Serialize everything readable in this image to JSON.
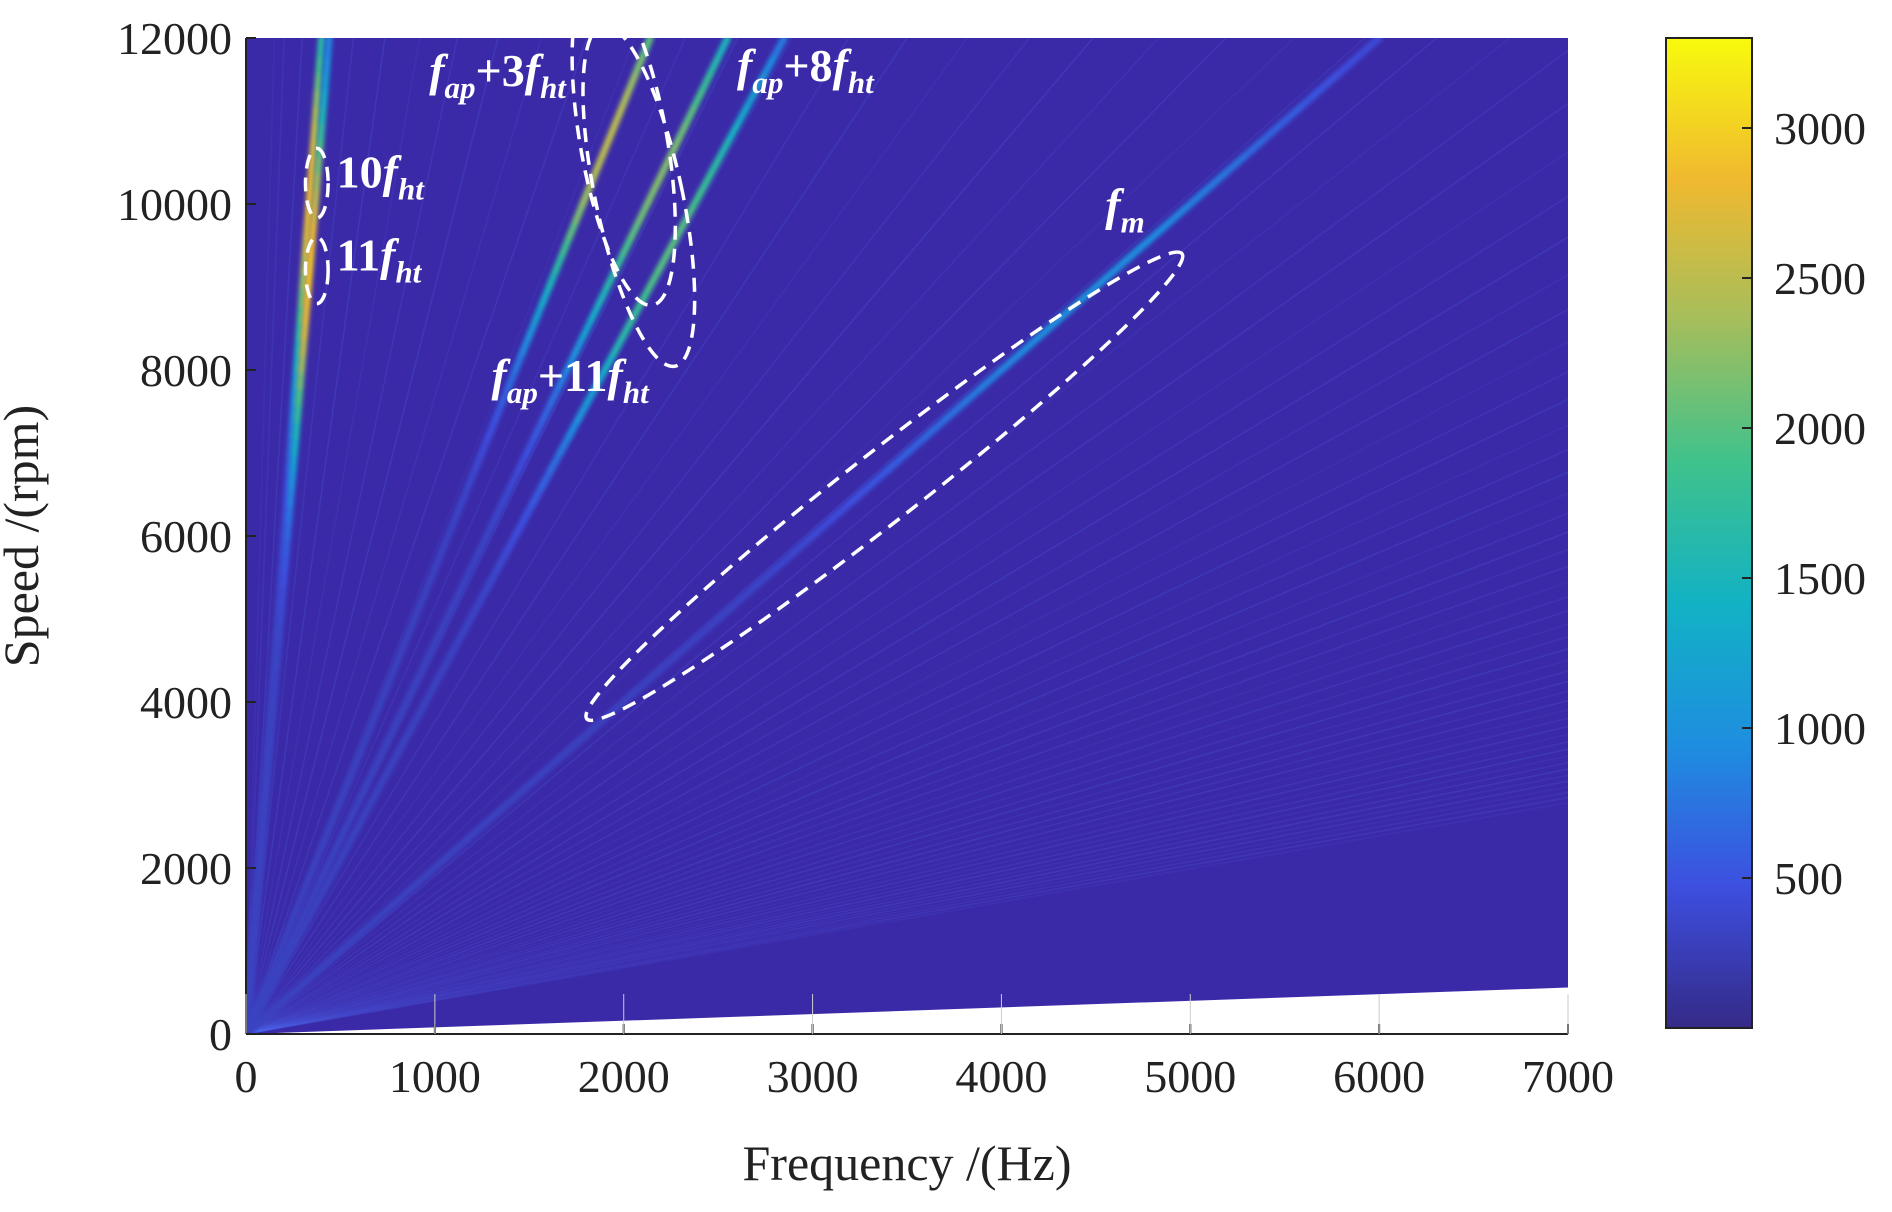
{
  "chart_data": {
    "type": "heatmap",
    "title": "",
    "xlabel": "Frequency /(Hz)",
    "ylabel": "Speed /(rpm)",
    "xlim": [
      0,
      7000
    ],
    "ylim": [
      0,
      12000
    ],
    "x_ticks": [
      0,
      1000,
      2000,
      3000,
      4000,
      5000,
      6000,
      7000
    ],
    "y_ticks": [
      0,
      2000,
      4000,
      6000,
      8000,
      10000,
      12000
    ],
    "colorbar": {
      "colormap": "parula",
      "range": [
        0,
        3300
      ],
      "ticks": [
        500,
        1000,
        1500,
        2000,
        2500,
        3000
      ],
      "colors": [
        "#352a87",
        "#3d4fe0",
        "#1e8ee0",
        "#12b2c4",
        "#3fc28c",
        "#a5be5c",
        "#f0b92f",
        "#f8fa0d"
      ]
    },
    "background_color": "#3b2aa8",
    "grid": true,
    "domain_boundary": {
      "speed_rpm_at_x0": 0,
      "speed_rpm_at_x7000": 560
    },
    "ridges": [
      {
        "label": "10f_ht",
        "x_at_12000rpm": 400,
        "peak_intensity": 2800,
        "peak_speed_rpm": 10200
      },
      {
        "label": "11f_ht",
        "x_at_12000rpm": 440,
        "peak_intensity": 2900,
        "peak_speed_rpm": 9200
      },
      {
        "label": "f_ap+3f_ht",
        "x_at_12000rpm": 2140,
        "peak_intensity": 2500,
        "peak_speed_rpm": 10800
      },
      {
        "label": "f_ap+8f_ht",
        "x_at_12000rpm": 2550,
        "peak_intensity": 2200,
        "peak_speed_rpm": 10400
      },
      {
        "label": "f_ap+11f_ht",
        "x_at_12000rpm": 2850,
        "peak_intensity": 2000,
        "peak_speed_rpm": 9500
      },
      {
        "label": "f_m",
        "x_at_12000rpm": 6000,
        "peak_intensity": 1000,
        "peak_speed_rpm": 9000
      }
    ],
    "annotations": [
      {
        "id": "ann-10fht",
        "coef": "10",
        "sym": "f",
        "sub": "ht",
        "x": 480,
        "y": 10200
      },
      {
        "id": "ann-11fht",
        "coef": "11",
        "sym": "f",
        "sub": "ht",
        "x": 480,
        "y": 9200
      },
      {
        "id": "ann-fap3",
        "f1": "f",
        "s1": "ap",
        "mid": "+3",
        "f2": "f",
        "s2": "ht",
        "x": 970,
        "y": 11420
      },
      {
        "id": "ann-fap8",
        "f1": "f",
        "s1": "ap",
        "mid": "+8",
        "f2": "f",
        "s2": "ht",
        "x": 2600,
        "y": 11480
      },
      {
        "id": "ann-fap11",
        "f1": "f",
        "s1": "ap",
        "mid": "+11",
        "f2": "f",
        "s2": "ht",
        "x": 1300,
        "y": 7750
      },
      {
        "id": "ann-fm",
        "sym": "f",
        "sub": "m",
        "x": 4550,
        "y": 9800
      }
    ],
    "highlight_ellipses": [
      {
        "name": "ellipse-10fht",
        "cx": 375,
        "cy": 10250,
        "rx": 60,
        "ry": 420,
        "angle": 0
      },
      {
        "name": "ellipse-11fht",
        "cx": 375,
        "cy": 9200,
        "rx": 60,
        "ry": 400,
        "angle": 0
      },
      {
        "name": "ellipse-fap-group-left",
        "cx": 2000,
        "cy": 10750,
        "rx": 230,
        "ry": 2000,
        "angle": 10
      },
      {
        "name": "ellipse-fap-group-right",
        "cx": 2080,
        "cy": 10100,
        "rx": 230,
        "ry": 2100,
        "angle": 12
      },
      {
        "name": "ellipse-fm",
        "cx": 3380,
        "cy": 6600,
        "rx": 2000,
        "ry": 420,
        "angle": 38
      }
    ]
  }
}
